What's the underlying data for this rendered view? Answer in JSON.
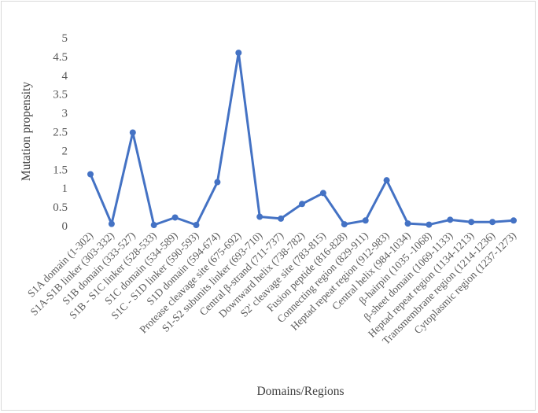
{
  "chart_data": {
    "type": "line",
    "title": "",
    "xlabel": "Domains/Regions",
    "ylabel": "Mutation propensity",
    "ylim": [
      0,
      5
    ],
    "yticks": [
      "0",
      "0.5",
      "1",
      "1.5",
      "2",
      "2.5",
      "3",
      "3.5",
      "4",
      "4.5",
      "5"
    ],
    "grid": false,
    "legend": "none",
    "line_color": "#4472c4",
    "categories": [
      "S1A  domain (1-302)",
      "S1A-S1B linker (303-332)",
      "S1B domain (333-527)",
      "S1B - S1C linker (528-533)",
      "S1C domain (534-589)",
      "S1C - S1D linker (590-593)",
      "S1D domain (594-674)",
      "Protease cleavage site (675-692)",
      "S1-S2 subunits linker (693-710)",
      "Central β-strand (711-737)",
      "Downward helix (738-782)",
      "S2' cleavage site (783-815)",
      "Fusion peptide (816-828)",
      "Connecting region (829-911)",
      "Heptad repeat region (912-983)",
      "Central helix (984-1034)",
      "β-hairpin (1035 -1068)",
      "β-sheet domain (1069-1133)",
      "Heptad repeat region (1134-1213)",
      "Transmembrane region (1214-1236)",
      "Cytoplasmic region (1237-1273)"
    ],
    "series": [
      {
        "values": [
          1.37,
          0.05,
          2.48,
          0.02,
          0.22,
          0.02,
          1.16,
          4.6,
          0.24,
          0.19,
          0.58,
          0.87,
          0.04,
          0.14,
          1.21,
          0.06,
          0.03,
          0.16,
          0.1,
          0.1,
          0.14
        ]
      }
    ]
  }
}
